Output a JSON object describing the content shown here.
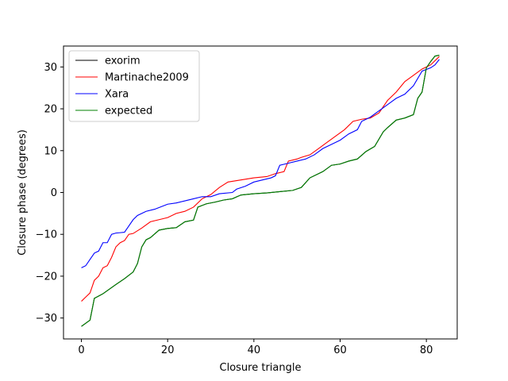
{
  "chart_data": {
    "type": "line",
    "title": "",
    "xlabel": "Closure triangle",
    "ylabel": "Closure phase (degrees)",
    "xlim": [
      -4.15,
      87.15
    ],
    "ylim": [
      -35,
      35
    ],
    "xticks": [
      0,
      20,
      40,
      60,
      80
    ],
    "yticks": [
      -30,
      -20,
      -10,
      0,
      10,
      20,
      30
    ],
    "grid": false,
    "legend_position": "top-left",
    "series": [
      {
        "name": "exorim",
        "color": "#000000",
        "x": [
          0,
          2,
          3,
          5,
          8,
          10,
          12,
          13,
          14,
          15,
          16,
          18,
          20,
          22,
          24,
          26,
          27,
          29,
          31,
          33,
          35,
          37,
          40,
          43,
          46,
          49,
          51,
          53,
          56,
          58,
          60,
          62,
          64,
          66,
          68,
          70,
          71,
          73,
          75,
          77,
          78,
          79,
          80,
          81,
          82,
          83
        ],
        "y": [
          -32,
          -30.5,
          -25.3,
          -24.2,
          -22,
          -20.6,
          -19,
          -17,
          -13,
          -11.3,
          -10.8,
          -9,
          -8.6,
          -8.4,
          -7,
          -6.6,
          -3.5,
          -2.7,
          -2.3,
          -1.8,
          -1.5,
          -0.6,
          -0.3,
          -0.1,
          0.2,
          0.5,
          1.2,
          3.5,
          5,
          6.5,
          6.8,
          7.5,
          8,
          9.8,
          11,
          14.5,
          15.5,
          17.3,
          17.8,
          18.6,
          22.5,
          24,
          29.8,
          31.3,
          32.6,
          32.8
        ]
      },
      {
        "name": "Martinache2009",
        "color": "#ff0000",
        "x": [
          0,
          1,
          2,
          3,
          4,
          5,
          6,
          7,
          8,
          9,
          10,
          11,
          12,
          14,
          16,
          18,
          20,
          22,
          24,
          26,
          28,
          30,
          32,
          34,
          37,
          40,
          43,
          45,
          47,
          48,
          50,
          51,
          53,
          55,
          57,
          59,
          61,
          63,
          65,
          67,
          69,
          71,
          73,
          75,
          77,
          79,
          80,
          81,
          82,
          83
        ],
        "y": [
          -26,
          -25,
          -24,
          -21,
          -20,
          -18,
          -17.5,
          -15.5,
          -13,
          -12,
          -11.5,
          -10,
          -9.8,
          -8.5,
          -7,
          -6.5,
          -6,
          -5,
          -4.5,
          -3.5,
          -1.5,
          -0.5,
          1.2,
          2.5,
          3,
          3.5,
          3.8,
          4.5,
          5,
          7.5,
          8,
          8.4,
          9,
          10.5,
          12,
          13.5,
          15,
          17,
          17.5,
          17.8,
          19,
          22,
          24,
          26.5,
          28,
          29.5,
          30,
          30.5,
          31.5,
          32.5
        ]
      },
      {
        "name": "Xara",
        "color": "#0000ff",
        "x": [
          0,
          1,
          2,
          3,
          4,
          5,
          6,
          7,
          8,
          9,
          10,
          11,
          12,
          13,
          15,
          17,
          19,
          20,
          22,
          24,
          26,
          28,
          30,
          32,
          35,
          36,
          38,
          40,
          42,
          44,
          45,
          46,
          48,
          50,
          52,
          54,
          56,
          58,
          60,
          62,
          64,
          65,
          67,
          69,
          71,
          73,
          75,
          77,
          79,
          81,
          82,
          83
        ],
        "y": [
          -18,
          -17.5,
          -16,
          -14.5,
          -14,
          -12,
          -12,
          -10,
          -9.7,
          -9.6,
          -9.5,
          -8,
          -6.5,
          -5.5,
          -4.5,
          -4,
          -3.2,
          -2.8,
          -2.5,
          -2,
          -1.5,
          -1,
          -1,
          -0.3,
          0,
          0.8,
          1.5,
          2.5,
          3,
          3.5,
          4,
          6.5,
          7,
          7.5,
          8,
          9,
          10.5,
          11.5,
          12.5,
          14,
          15,
          17,
          18,
          19.5,
          21,
          22.5,
          23.5,
          25.5,
          29,
          29.8,
          30.5,
          31.8
        ]
      },
      {
        "name": "expected",
        "color": "#008000",
        "x": [
          0,
          2,
          3,
          5,
          8,
          10,
          12,
          13,
          14,
          15,
          16,
          18,
          20,
          22,
          24,
          26,
          27,
          29,
          31,
          33,
          35,
          37,
          40,
          43,
          46,
          49,
          51,
          53,
          56,
          58,
          60,
          62,
          64,
          66,
          68,
          70,
          71,
          73,
          75,
          77,
          78,
          79,
          80,
          81,
          82,
          83
        ],
        "y": [
          -32,
          -30.5,
          -25.3,
          -24.2,
          -22,
          -20.6,
          -19,
          -17,
          -13,
          -11.3,
          -10.8,
          -9,
          -8.6,
          -8.4,
          -7,
          -6.6,
          -3.5,
          -2.7,
          -2.3,
          -1.8,
          -1.5,
          -0.6,
          -0.3,
          -0.1,
          0.2,
          0.5,
          1.2,
          3.5,
          5,
          6.5,
          6.8,
          7.5,
          8,
          9.8,
          11,
          14.5,
          15.5,
          17.3,
          17.8,
          18.6,
          22.5,
          24,
          29.8,
          31.3,
          32.6,
          32.8
        ]
      }
    ]
  }
}
